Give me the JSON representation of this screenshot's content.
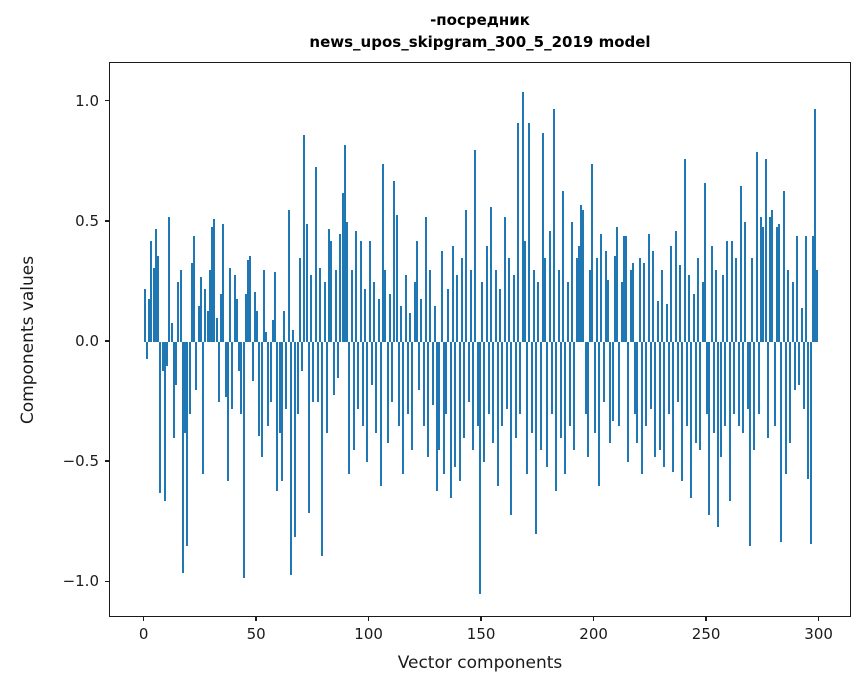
{
  "figure": {
    "title_line1": "-посредник",
    "title_line2": "news_upos_skipgram_300_5_2019 model",
    "xlabel": "Vector components",
    "ylabel": "Components values"
  },
  "style": {
    "bar_color": "#1f77b4",
    "spine_color": "#1a1a1a",
    "background": "#ffffff"
  },
  "chart_data": {
    "type": "bar",
    "title_lines": [
      "-посредник",
      "news_upos_skipgram_300_5_2019 model"
    ],
    "xlabel": "Vector components",
    "ylabel": "Components values",
    "legend": null,
    "grid": false,
    "bar_color": "#1f77b4",
    "bar_width": 0.8,
    "x_start": 0,
    "x_step": 1,
    "xlim": [
      -15.39,
      314.39
    ],
    "ylim": [
      -1.148,
      1.161
    ],
    "x_tick_values": [
      0,
      50,
      100,
      150,
      200,
      250,
      300
    ],
    "x_tick_labels": [
      "0",
      "50",
      "100",
      "150",
      "200",
      "250",
      "300"
    ],
    "y_tick_values": [
      1.0,
      0.5,
      0.0,
      -0.5,
      -1.0
    ],
    "y_tick_labels": [
      "1.0",
      "0.5",
      "0.0",
      "−0.5",
      "−1.0"
    ],
    "values": [
      0.22,
      -0.07,
      0.18,
      0.42,
      0.31,
      0.47,
      0.36,
      -0.63,
      -0.12,
      -0.66,
      -0.1,
      0.52,
      0.08,
      -0.4,
      -0.18,
      0.25,
      0.3,
      -0.96,
      -0.38,
      -0.85,
      -0.3,
      0.33,
      0.44,
      -0.2,
      0.15,
      0.27,
      -0.55,
      0.22,
      0.13,
      0.3,
      0.48,
      0.51,
      0.1,
      -0.25,
      0.2,
      0.49,
      -0.23,
      -0.58,
      0.31,
      -0.28,
      0.28,
      0.18,
      -0.12,
      -0.3,
      -0.98,
      0.2,
      0.34,
      0.36,
      -0.16,
      0.21,
      0.13,
      -0.39,
      -0.48,
      0.3,
      0.04,
      -0.35,
      -0.25,
      0.09,
      0.29,
      -0.62,
      -0.38,
      -0.58,
      0.13,
      -0.28,
      0.55,
      -0.97,
      0.05,
      -0.81,
      -0.3,
      0.35,
      -0.12,
      0.86,
      0.49,
      -0.71,
      0.28,
      -0.25,
      0.73,
      -0.25,
      0.31,
      -0.89,
      0.25,
      -0.38,
      0.47,
      0.42,
      -0.22,
      0.3,
      -0.15,
      0.45,
      0.62,
      0.82,
      0.5,
      -0.55,
      0.3,
      -0.45,
      0.46,
      -0.28,
      0.42,
      -0.35,
      0.22,
      -0.5,
      0.42,
      -0.18,
      0.25,
      -0.38,
      0.18,
      -0.6,
      0.74,
      0.3,
      -0.42,
      0.2,
      -0.25,
      0.67,
      0.53,
      -0.35,
      0.15,
      -0.55,
      0.28,
      -0.3,
      0.12,
      -0.45,
      0.25,
      0.42,
      -0.2,
      0.18,
      -0.35,
      0.52,
      -0.48,
      0.3,
      -0.26,
      0.15,
      -0.62,
      -0.45,
      0.38,
      -0.55,
      -0.3,
      0.22,
      -0.65,
      0.4,
      -0.52,
      0.28,
      -0.58,
      0.35,
      -0.4,
      0.55,
      -0.25,
      0.3,
      -0.45,
      0.8,
      -0.35,
      -1.05,
      0.25,
      -0.5,
      0.4,
      -0.3,
      0.56,
      -0.42,
      0.3,
      -0.6,
      0.22,
      -0.35,
      0.52,
      -0.28,
      0.35,
      -0.72,
      0.28,
      -0.4,
      0.91,
      -0.3,
      1.04,
      0.42,
      -0.55,
      0.91,
      -0.38,
      0.3,
      -0.8,
      0.25,
      -0.45,
      0.87,
      0.35,
      -0.52,
      0.46,
      -0.3,
      0.97,
      -0.62,
      0.3,
      -0.4,
      0.63,
      -0.55,
      0.25,
      -0.35,
      0.5,
      -0.45,
      0.35,
      0.4,
      0.57,
      0.55,
      -0.3,
      -0.48,
      0.3,
      0.74,
      -0.38,
      0.35,
      -0.6,
      0.45,
      -0.25,
      0.38,
      0.26,
      -0.42,
      -0.33,
      0.36,
      0.48,
      -0.35,
      0.25,
      0.44,
      0.44,
      -0.5,
      0.3,
      0.33,
      -0.3,
      -0.42,
      0.35,
      -0.55,
      0.33,
      -0.35,
      0.45,
      -0.28,
      0.38,
      -0.48,
      0.17,
      -0.45,
      0.3,
      -0.52,
      0.16,
      -0.3,
      0.4,
      -0.54,
      0.46,
      -0.25,
      0.32,
      -0.58,
      0.76,
      -0.35,
      0.28,
      -0.65,
      0.2,
      -0.42,
      0.35,
      -0.45,
      0.25,
      0.66,
      -0.3,
      -0.72,
      0.4,
      -0.38,
      0.3,
      -0.77,
      -0.48,
      0.28,
      -0.35,
      0.42,
      -0.66,
      0.42,
      -0.3,
      0.35,
      -0.35,
      0.65,
      -0.38,
      0.5,
      -0.28,
      -0.85,
      0.35,
      -0.45,
      0.79,
      -0.3,
      0.52,
      0.48,
      0.76,
      -0.4,
      0.52,
      0.55,
      -0.35,
      0.48,
      0.49,
      -0.83,
      0.63,
      -0.55,
      0.3,
      -0.42,
      0.25,
      -0.2,
      0.44,
      -0.18,
      0.14,
      -0.28,
      0.44,
      -0.57,
      -0.84,
      0.44,
      0.97,
      0.3
    ]
  }
}
